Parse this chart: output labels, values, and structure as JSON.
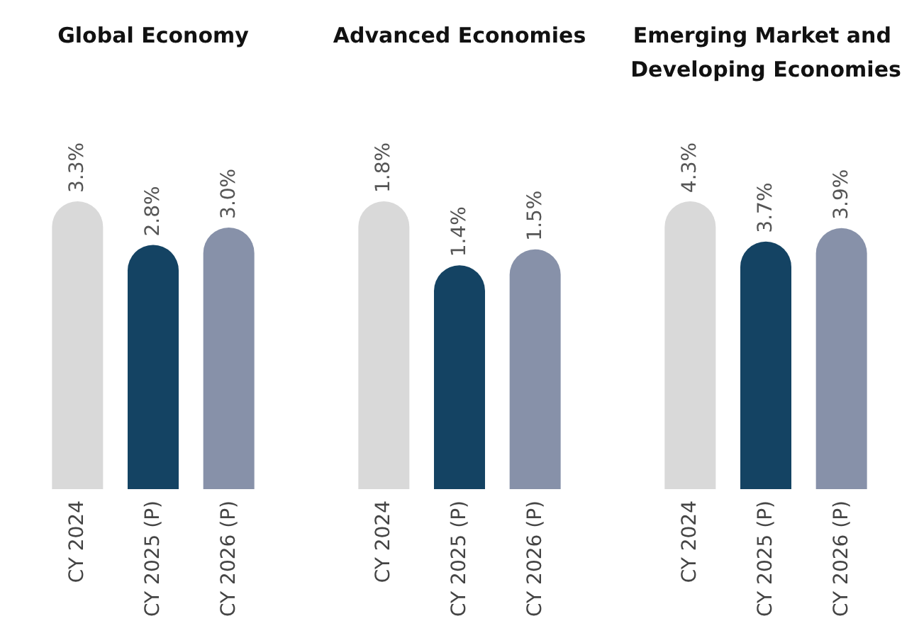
{
  "chart_data": [
    {
      "type": "bar",
      "title": "Global Economy",
      "categories": [
        "CY 2024",
        "CY 2025 (P)",
        "CY 2026 (P)"
      ],
      "values": [
        3.3,
        2.8,
        3.0
      ],
      "colors": [
        "#d9d9d9",
        "#144363",
        "#8791a9"
      ],
      "value_labels": [
        "3.3%",
        "2.8%",
        "3.0%"
      ],
      "tick_labels": "x"
    },
    {
      "type": "bar",
      "title": "Advanced Economies",
      "categories": [
        "CY 2024",
        "CY 2025 (P)",
        "CY 2026 (P)"
      ],
      "values": [
        1.8,
        1.4,
        1.5
      ],
      "colors": [
        "#d9d9d9",
        "#144363",
        "#8791a9"
      ],
      "value_labels": [
        "1.8%",
        "1.4%",
        "1.5%"
      ],
      "tick_labels": "x"
    },
    {
      "type": "bar",
      "title": "Emerging Market and Developing Economies",
      "categories": [
        "CY 2024",
        "CY 2025 (P)",
        "CY 2026 (P)"
      ],
      "values": [
        4.3,
        3.7,
        3.9
      ],
      "colors": [
        "#d9d9d9",
        "#144363",
        "#8791a9"
      ],
      "value_labels": [
        "4.3%",
        "3.7%",
        "3.9%"
      ],
      "tick_labels": "x"
    }
  ]
}
